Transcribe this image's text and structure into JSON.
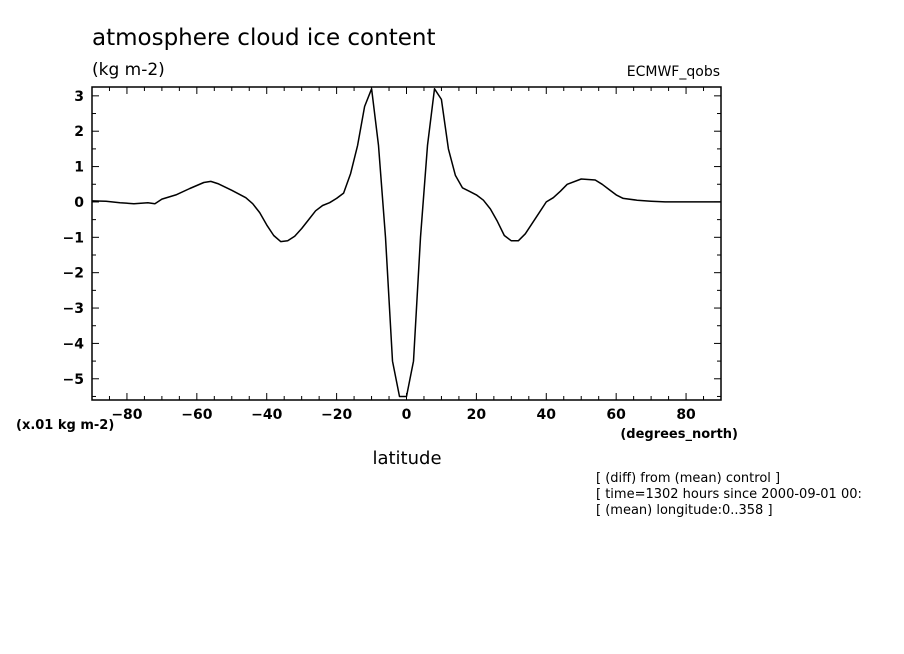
{
  "chart_data": {
    "type": "line",
    "title": "atmosphere cloud ice content",
    "units_label": "(kg m-2)",
    "dataset_label": "ECMWF_qobs",
    "y_scale_label": "(x.01 kg m-2)",
    "x_units_label": "(degrees_north)",
    "xlabel": "latitude",
    "ylabel": "",
    "notes": [
      "[ (diff) from (mean) control ]",
      "[ time=1302 hours since 2000-09-01 00:",
      "[ (mean) longitude:0..358 ]"
    ],
    "xlim": [
      -90,
      90
    ],
    "ylim": [
      -5.6,
      3.25
    ],
    "x_ticks": [
      -80,
      -60,
      -40,
      -20,
      0,
      20,
      40,
      60,
      80
    ],
    "y_ticks": [
      3,
      2,
      1,
      0,
      -1,
      -2,
      -3,
      -4,
      -5
    ],
    "grid": false,
    "series": [
      {
        "x": [
          -90,
          -86,
          -82,
          -78,
          -74,
          -72,
          -70,
          -66,
          -62,
          -58,
          -56,
          -54,
          -50,
          -46,
          -44,
          -42,
          -40,
          -38,
          -36,
          -34,
          -32,
          -30,
          -28,
          -26,
          -24,
          -22,
          -20,
          -18,
          -16,
          -14,
          -12,
          -10,
          -8,
          -6,
          -4,
          -2,
          0,
          2,
          4,
          6,
          8,
          10,
          12,
          14,
          16,
          18,
          20,
          22,
          24,
          26,
          28,
          30,
          32,
          34,
          36,
          38,
          40,
          42,
          44,
          46,
          50,
          54,
          56,
          58,
          60,
          62,
          66,
          70,
          74,
          78,
          82,
          86,
          90
        ],
        "y": [
          0.03,
          0.02,
          -0.02,
          -0.05,
          -0.02,
          -0.05,
          0.08,
          0.2,
          0.38,
          0.55,
          0.58,
          0.52,
          0.33,
          0.12,
          -0.05,
          -0.3,
          -0.65,
          -0.95,
          -1.12,
          -1.1,
          -0.97,
          -0.75,
          -0.5,
          -0.25,
          -0.1,
          -0.02,
          0.1,
          0.25,
          0.8,
          1.6,
          2.7,
          3.2,
          1.6,
          -1.0,
          -4.5,
          -5.5,
          -5.5,
          -4.5,
          -1.0,
          1.6,
          3.2,
          2.9,
          1.5,
          0.75,
          0.4,
          0.3,
          0.2,
          0.05,
          -0.2,
          -0.55,
          -0.95,
          -1.1,
          -1.1,
          -0.9,
          -0.6,
          -0.3,
          0.0,
          0.12,
          0.3,
          0.5,
          0.65,
          0.62,
          0.5,
          0.35,
          0.2,
          0.1,
          0.05,
          0.02,
          0.0,
          0.0,
          0.0,
          0.0,
          0.0
        ]
      }
    ]
  }
}
